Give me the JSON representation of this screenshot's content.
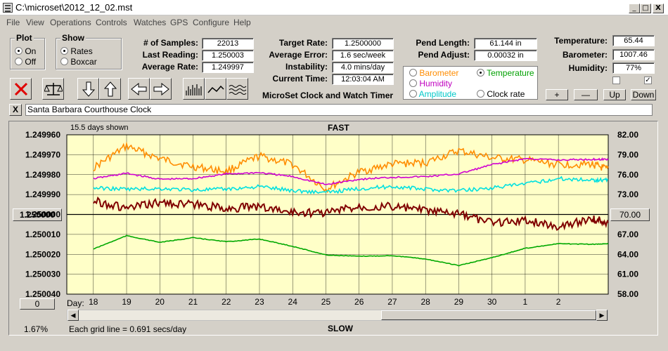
{
  "window": {
    "title": "C:\\microset\\2012_12_02.mst",
    "minimize": "_",
    "maximize": "□",
    "close": "X"
  },
  "menu": [
    "File",
    "View",
    "Operations",
    "Controls",
    "Watches",
    "GPS",
    "Configure",
    "Help"
  ],
  "plot_group": {
    "legend": "Plot",
    "on": "On",
    "off": "Off",
    "selected": "On"
  },
  "show_group": {
    "legend": "Show",
    "rates": "Rates",
    "boxcar": "Boxcar",
    "selected": "Rates"
  },
  "stats": {
    "samples_label": "# of Samples:",
    "samples": "22013",
    "last_label": "Last Reading:",
    "last": "1.250003",
    "avg_label": "Average Rate:",
    "avg": "1.249997",
    "target_label": "Target Rate:",
    "target": "1.2500000",
    "avg_err_label": "Average Error:",
    "avg_err": "1.6 sec/week",
    "instab_label": "Instability:",
    "instab": "4.0 mins/day",
    "time_label": "Current Time:",
    "time": "12:03:04 AM",
    "pend_len_label": "Pend Length:",
    "pend_len": "61.144 in",
    "pend_adj_label": "Pend Adjust:",
    "pend_adj": "0.00032 in",
    "temp_label": "Temperature:",
    "temp": "65.44",
    "baro_label": "Barometer:",
    "baro": "1007.46",
    "hum_label": "Humidity:",
    "hum": "77%"
  },
  "app_caption": "MicroSet Clock and Watch Timer",
  "overlay": {
    "barometer": "Barometer",
    "temperature": "Temperature",
    "humidity": "Humidity",
    "amplitude": "Amplitude",
    "clock_rate": "Clock rate",
    "selected": "Temperature"
  },
  "adjust_buttons": {
    "plus": "+",
    "minus": "—",
    "up": "Up",
    "down": "Down"
  },
  "clock_name": "Santa Barbara Courthouse Clock",
  "clear_x": "X",
  "chart_top": {
    "days_shown": "15.5 days shown",
    "fast": "FAST"
  },
  "chart_bottom": {
    "percent": "1.67%",
    "grid_note": "Each grid line = 0.691 secs/day",
    "slow": "SLOW"
  },
  "left_center_btn": "1.250000",
  "right_center_btn": "70.00",
  "left_zero_btn": "0",
  "day_label": "Day:",
  "colors": {
    "barometer": "#ff8c00",
    "humidity": "#d000d0",
    "amplitude": "#00e0e0",
    "temperature": "#00a800",
    "rate": "#800000",
    "plot_bg": "#ffffc8"
  },
  "chart_data": {
    "type": "line",
    "left_axis_ticks": [
      "1.249960",
      "1.249970",
      "1.249980",
      "1.249990",
      "1.250000",
      "1.250010",
      "1.250020",
      "1.250030",
      "1.250040"
    ],
    "right_axis_ticks": [
      "82.00",
      "79.00",
      "76.00",
      "73.00",
      "70.00",
      "67.00",
      "64.00",
      "61.00",
      "58.00"
    ],
    "x_ticks": [
      "18",
      "19",
      "20",
      "21",
      "22",
      "23",
      "24",
      "25",
      "26",
      "27",
      "28",
      "29",
      "30",
      "1",
      "2"
    ],
    "ylim_rate": [
      1.24996,
      1.25004
    ],
    "ylim_temp": [
      58,
      82
    ],
    "x": [
      0,
      1,
      2,
      3,
      4,
      5,
      6,
      7,
      8,
      9,
      10,
      11,
      12,
      13,
      14,
      15,
      15.5
    ],
    "series": [
      {
        "name": "Barometer",
        "color": "#ff8c00",
        "values": [
          77.0,
          80.3,
          78.4,
          77.2,
          76.5,
          78.8,
          77.5,
          73.8,
          76.4,
          77.6,
          77.8,
          79.6,
          78.5,
          78.2,
          77.5,
          77.6,
          76.7
        ]
      },
      {
        "name": "Humidity",
        "color": "#d000d0",
        "values": [
          75.4,
          76.2,
          75.3,
          75.4,
          76.1,
          76.3,
          75.7,
          74.5,
          75.3,
          75.6,
          75.7,
          76.1,
          77.5,
          78.4,
          78.2,
          78.3,
          78.3
        ]
      },
      {
        "name": "Amplitude",
        "color": "#00e0e0",
        "values": [
          74.0,
          73.8,
          73.9,
          73.7,
          73.8,
          74.2,
          73.6,
          73.3,
          73.9,
          74.2,
          73.8,
          73.6,
          74.0,
          74.6,
          75.4,
          75.2,
          75.2
        ]
      },
      {
        "name": "Temperature",
        "color": "#00a800",
        "values": [
          64.8,
          66.8,
          65.8,
          66.5,
          65.9,
          66.3,
          65.2,
          63.9,
          63.7,
          63.8,
          63.3,
          62.3,
          63.5,
          64.9,
          65.6,
          65.5,
          65.6
        ]
      },
      {
        "name": "Clock rate",
        "color": "#800000",
        "values": [
          1.249993,
          1.249997,
          1.249994,
          1.249995,
          1.249997,
          1.249996,
          1.249999,
          1.249999,
          1.249996,
          1.249996,
          1.249998,
          1.25,
          1.250004,
          1.250003,
          1.250006,
          1.250002,
          1.250004
        ]
      }
    ]
  }
}
